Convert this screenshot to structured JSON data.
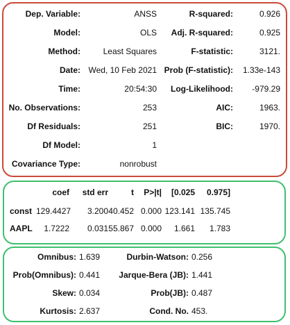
{
  "summary": {
    "rows": [
      {
        "label": "Dep. Variable:",
        "value": "ANSS",
        "label2": "R-squared:",
        "value2": "0.926"
      },
      {
        "label": "Model:",
        "value": "OLS",
        "label2": "Adj. R-squared:",
        "value2": "0.925"
      },
      {
        "label": "Method:",
        "value": "Least Squares",
        "label2": "F-statistic:",
        "value2": "3121."
      },
      {
        "label": "Date:",
        "value": "Wed, 10 Feb 2021",
        "label2": "Prob (F-statistic):",
        "value2": "1.33e-143"
      },
      {
        "label": "Time:",
        "value": "20:54:30",
        "label2": "Log-Likelihood:",
        "value2": "-979.29"
      },
      {
        "label": "No. Observations:",
        "value": "253",
        "label2": "AIC:",
        "value2": "1963."
      },
      {
        "label": "Df Residuals:",
        "value": "251",
        "label2": "BIC:",
        "value2": "1970."
      },
      {
        "label": "Df Model:",
        "value": "1",
        "label2": "",
        "value2": ""
      },
      {
        "label": "Covariance Type:",
        "value": "nonrobust",
        "label2": "",
        "value2": ""
      }
    ]
  },
  "coefficients": {
    "headers": [
      "coef",
      "std err",
      "t",
      "P>|t|",
      "[0.025",
      "0.975]"
    ],
    "rows": [
      {
        "name": "const",
        "values": [
          "129.4427",
          "3.200",
          "40.452",
          "0.000",
          "123.141",
          "135.745"
        ]
      },
      {
        "name": "AAPL",
        "values": [
          "1.7222",
          "0.031",
          "55.867",
          "0.000",
          "1.661",
          "1.783"
        ]
      }
    ]
  },
  "diagnostics": {
    "rows": [
      {
        "label": "Omnibus:",
        "value": "1.639",
        "label2": "Durbin-Watson:",
        "value2": "0.256"
      },
      {
        "label": "Prob(Omnibus):",
        "value": "0.441",
        "label2": "Jarque-Bera (JB):",
        "value2": "1.441"
      },
      {
        "label": "Skew:",
        "value": "0.034",
        "label2": "Prob(JB):",
        "value2": "0.487"
      },
      {
        "label": "Kurtosis:",
        "value": "2.637",
        "label2": "Cond. No.",
        "value2": "453."
      }
    ]
  },
  "colors": {
    "summary_border": "#c94a3a",
    "table_border": "#3fbf6f"
  }
}
